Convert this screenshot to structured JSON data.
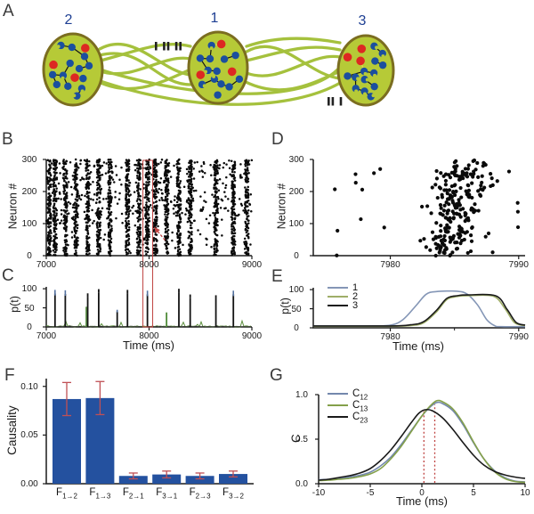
{
  "panel_labels": {
    "A": "A",
    "B": "B",
    "C": "C",
    "D": "D",
    "E": "E",
    "F": "F",
    "G": "G"
  },
  "colors": {
    "background": "#ffffff",
    "axis": "#1a1a1a",
    "panel_label": "#3a3a3a",
    "pop_fill": "#b6ca37",
    "pop_stroke": "#7b6d20",
    "fiber": "#a5c13d",
    "neuron_blue": "#1b4f9e",
    "neuron_red": "#dd2822",
    "edge_black": "#141414",
    "edge_yellow": "#ded64a",
    "pop_label": "#1e3f93",
    "mark_black": "#222222",
    "raster_dot": "#0a0a0a",
    "annot_red": "#bf4341",
    "bar_blue": "#24519f",
    "error_red": "#c05055",
    "spike_black": "#141414",
    "spike_blue": "#54719f",
    "spike_green": "#4e8a38",
    "noise_green": "#5d8f3e",
    "line1_blue": "#8496b6",
    "line2_green": "#9fae68",
    "line3_black": "#1a1a1a",
    "g_blue": "#7388ad",
    "g_green": "#84a04a",
    "g_black": "#1a1a1a"
  },
  "diagram": {
    "populations": [
      {
        "name": "2"
      },
      {
        "name": "1"
      },
      {
        "name": "3"
      }
    ],
    "neuron_counts": {
      "blue": 13,
      "red": 3
    },
    "connection_marks": [
      {
        "between": "2-1",
        "tallies": [
          1,
          2,
          2
        ]
      },
      {
        "between": "1-3",
        "tallies": [
          2,
          1
        ]
      }
    ]
  },
  "chart_data": [
    {
      "panel": "B",
      "type": "scatter",
      "subtype": "spike-raster",
      "ylabel": "Neuron #",
      "xlabel": "",
      "xlim": [
        7000,
        9000
      ],
      "ylim": [
        0,
        300
      ],
      "xticks": [
        {
          "v": 7000,
          "label": "7000"
        },
        {
          "v": 8000,
          "label": "8000"
        },
        {
          "v": 9000,
          "label": "9000"
        }
      ],
      "yticks": [
        {
          "v": 0,
          "label": "0"
        },
        {
          "v": 100,
          "label": "100"
        },
        {
          "v": 200,
          "label": "200"
        },
        {
          "v": 300,
          "label": "300"
        }
      ],
      "n_neurons": 300,
      "burst_times": [
        7030,
        7085,
        7185,
        7290,
        7403,
        7510,
        7620,
        7790,
        7900,
        7984,
        8060,
        8170,
        8290,
        8400,
        8650,
        8820,
        8950
      ],
      "background_spikes": 430,
      "outlier": {
        "t": 7952,
        "n": 52
      },
      "highlight_box": {
        "t0": 7940,
        "t1": 8035
      },
      "arrow": {
        "from_t": 8155,
        "from_n": 48,
        "to_t": 8048,
        "to_n": 90
      }
    },
    {
      "panel": "C",
      "type": "line",
      "subtype": "population-activity",
      "ylabel": "p(t)",
      "xlabel": "Time (ms)",
      "xlim": [
        7000,
        9000
      ],
      "ylim": [
        0,
        105
      ],
      "xticks": [
        {
          "v": 7000,
          "label": "7000"
        },
        {
          "v": 8000,
          "label": "8000"
        },
        {
          "v": 9000,
          "label": "9000"
        }
      ],
      "yticks": [
        {
          "v": 0,
          "label": "0"
        },
        {
          "v": 50,
          "label": "50"
        },
        {
          "v": 100,
          "label": "100"
        }
      ],
      "spikes": [
        {
          "t": 7085,
          "h": 97,
          "style": "blue_tip"
        },
        {
          "t": 7185,
          "h": 96,
          "style": "blue_tip"
        },
        {
          "t": 7403,
          "h": 88,
          "style": "green_low"
        },
        {
          "t": 7510,
          "h": 99,
          "style": "black"
        },
        {
          "t": 7690,
          "h": 45,
          "style": "blue_tip"
        },
        {
          "t": 7790,
          "h": 97,
          "style": "black"
        },
        {
          "t": 7984,
          "h": 95,
          "style": "blue_tip"
        },
        {
          "t": 8170,
          "h": 38,
          "style": "green"
        },
        {
          "t": 8290,
          "h": 100,
          "style": "black"
        },
        {
          "t": 8400,
          "h": 85,
          "style": "black"
        },
        {
          "t": 8650,
          "h": 83,
          "style": "black"
        },
        {
          "t": 8820,
          "h": 95,
          "style": "blue_tip"
        }
      ]
    },
    {
      "panel": "D",
      "type": "scatter",
      "subtype": "spike-raster-zoom",
      "ylabel": "Neuron #",
      "xlabel": "",
      "xlim": [
        7974,
        7990.5
      ],
      "ylim": [
        0,
        300
      ],
      "xticks": [
        {
          "v": 7980,
          "label": "7980"
        },
        {
          "v": 7990,
          "label": "7990"
        }
      ],
      "yticks": [
        {
          "v": 0,
          "label": "0"
        },
        {
          "v": 100,
          "label": "100"
        },
        {
          "v": 200,
          "label": "200"
        },
        {
          "v": 300,
          "label": "300"
        }
      ],
      "n_neurons": 300,
      "burst": {
        "center": 7984.5,
        "drift_ms": 1.4,
        "sigma_ms": 0.95,
        "count": 235
      },
      "background_spikes": 26
    },
    {
      "panel": "E",
      "type": "line",
      "subtype": "population-activity-zoom",
      "ylabel": "p(t)",
      "xlabel": "Time (ms)",
      "xlim": [
        7974,
        7990.5
      ],
      "ylim": [
        0,
        105
      ],
      "xticks": [
        {
          "v": 7980,
          "label": "7980"
        },
        {
          "v": 7990,
          "label": "7990"
        }
      ],
      "minor_xticks": [
        7985
      ],
      "yticks": [
        {
          "v": 0,
          "label": "0"
        },
        {
          "v": 50,
          "label": "50"
        },
        {
          "v": 100,
          "label": "100"
        }
      ],
      "legend_position": "top-left",
      "series": [
        {
          "name": "1",
          "color_key": "line1_blue",
          "points": [
            [
              7974,
              5
            ],
            [
              7978,
              5
            ],
            [
              7980,
              7
            ],
            [
              7981,
              22
            ],
            [
              7982,
              58
            ],
            [
              7982.8,
              88
            ],
            [
              7983.6,
              95
            ],
            [
              7985.2,
              96
            ],
            [
              7986,
              88
            ],
            [
              7986.8,
              60
            ],
            [
              7987.5,
              22
            ],
            [
              7988.1,
              6
            ],
            [
              7988.6,
              3
            ],
            [
              7990.5,
              3
            ]
          ]
        },
        {
          "name": "2",
          "color_key": "line2_green",
          "points": [
            [
              7974,
              4
            ],
            [
              7980,
              4
            ],
            [
              7981.6,
              6
            ],
            [
              7982.6,
              13
            ],
            [
              7983.6,
              42
            ],
            [
              7984.4,
              74
            ],
            [
              7985.2,
              82
            ],
            [
              7986,
              84
            ],
            [
              7988,
              83
            ],
            [
              7988.9,
              52
            ],
            [
              7989.6,
              16
            ],
            [
              7990.1,
              8
            ],
            [
              7990.5,
              6
            ]
          ]
        },
        {
          "name": "3",
          "color_key": "line3_black",
          "points": [
            [
              7974,
              5
            ],
            [
              7980,
              5
            ],
            [
              7981.6,
              8
            ],
            [
              7982.6,
              16
            ],
            [
              7983.6,
              46
            ],
            [
              7984.4,
              77
            ],
            [
              7985.2,
              84
            ],
            [
              7986,
              86
            ],
            [
              7988.2,
              84
            ],
            [
              7989.1,
              48
            ],
            [
              7989.8,
              14
            ],
            [
              7990.5,
              7
            ]
          ]
        }
      ]
    },
    {
      "panel": "F",
      "type": "bar",
      "ylabel": "Causality",
      "xlabel": "",
      "ylim": [
        0,
        0.108
      ],
      "yticks": [
        {
          "v": 0,
          "label": "0.00"
        },
        {
          "v": 0.05,
          "label": "0.05"
        },
        {
          "v": 0.1,
          "label": "0.10"
        }
      ],
      "categories": [
        {
          "main": "F",
          "sub": "1→2"
        },
        {
          "main": "F",
          "sub": "1→3"
        },
        {
          "main": "F",
          "sub": "2→1"
        },
        {
          "main": "F",
          "sub": "3→1"
        },
        {
          "main": "F",
          "sub": "2→3"
        },
        {
          "main": "F",
          "sub": "3→2"
        }
      ],
      "values": [
        0.087,
        0.088,
        0.008,
        0.0095,
        0.008,
        0.01
      ],
      "errors": [
        0.017,
        0.017,
        0.003,
        0.0035,
        0.003,
        0.003
      ]
    },
    {
      "panel": "G",
      "type": "line",
      "subtype": "cross-correlation",
      "ylabel": "C",
      "xlabel": "Time (ms)",
      "xlim": [
        -10,
        10
      ],
      "ylim": [
        0,
        1
      ],
      "xticks": [
        {
          "v": -10,
          "label": "-10"
        },
        {
          "v": -5,
          "label": "-5"
        },
        {
          "v": 0,
          "label": "0"
        },
        {
          "v": 5,
          "label": "5"
        },
        {
          "v": 10,
          "label": "10"
        }
      ],
      "yticks": [
        {
          "v": 0,
          "label": "0.0"
        },
        {
          "v": 0.5,
          "label": "0.5"
        },
        {
          "v": 1,
          "label": "1.0"
        }
      ],
      "legend": [
        {
          "main": "C",
          "sub": "12"
        },
        {
          "main": "C",
          "sub": "13"
        },
        {
          "main": "C",
          "sub": "23"
        }
      ],
      "series": [
        {
          "name": "C12",
          "color_key": "g_blue",
          "points": [
            [
              -10,
              0.045
            ],
            [
              -9,
              0.05
            ],
            [
              -8,
              0.06
            ],
            [
              -7,
              0.075
            ],
            [
              -6,
              0.095
            ],
            [
              -5,
              0.13
            ],
            [
              -4,
              0.2
            ],
            [
              -3,
              0.3
            ],
            [
              -2,
              0.44
            ],
            [
              -1,
              0.6
            ],
            [
              0,
              0.76
            ],
            [
              0.7,
              0.85
            ],
            [
              1.4,
              0.91
            ],
            [
              2,
              0.9
            ],
            [
              3,
              0.82
            ],
            [
              4,
              0.66
            ],
            [
              5,
              0.46
            ],
            [
              6,
              0.28
            ],
            [
              7,
              0.15
            ],
            [
              8,
              0.07
            ],
            [
              9,
              0.03
            ],
            [
              10,
              0.02
            ]
          ]
        },
        {
          "name": "C13",
          "color_key": "g_green",
          "points": [
            [
              -10,
              0.035
            ],
            [
              -9,
              0.04
            ],
            [
              -8,
              0.05
            ],
            [
              -7,
              0.06
            ],
            [
              -6,
              0.08
            ],
            [
              -5,
              0.11
            ],
            [
              -4,
              0.17
            ],
            [
              -3,
              0.28
            ],
            [
              -2,
              0.42
            ],
            [
              -1,
              0.59
            ],
            [
              0,
              0.76
            ],
            [
              0.7,
              0.86
            ],
            [
              1.4,
              0.93
            ],
            [
              2,
              0.92
            ],
            [
              3,
              0.84
            ],
            [
              4,
              0.68
            ],
            [
              5,
              0.47
            ],
            [
              6,
              0.28
            ],
            [
              7,
              0.14
            ],
            [
              8,
              0.06
            ],
            [
              9,
              0.025
            ],
            [
              10,
              0.015
            ]
          ]
        },
        {
          "name": "C23",
          "color_key": "g_black",
          "points": [
            [
              -10,
              0.04
            ],
            [
              -9,
              0.05
            ],
            [
              -8,
              0.07
            ],
            [
              -7,
              0.09
            ],
            [
              -6,
              0.12
            ],
            [
              -5,
              0.17
            ],
            [
              -4,
              0.26
            ],
            [
              -3,
              0.38
            ],
            [
              -2,
              0.53
            ],
            [
              -1,
              0.69
            ],
            [
              -0.3,
              0.79
            ],
            [
              0.3,
              0.83
            ],
            [
              1,
              0.82
            ],
            [
              2,
              0.74
            ],
            [
              3,
              0.61
            ],
            [
              4,
              0.46
            ],
            [
              5,
              0.32
            ],
            [
              6,
              0.21
            ],
            [
              7,
              0.14
            ],
            [
              8,
              0.1
            ],
            [
              9,
              0.075
            ],
            [
              10,
              0.06
            ]
          ]
        }
      ],
      "peak_markers": [
        {
          "t": 0.2,
          "v": 0.83
        },
        {
          "t": 1.25,
          "v": 0.89
        }
      ]
    }
  ]
}
